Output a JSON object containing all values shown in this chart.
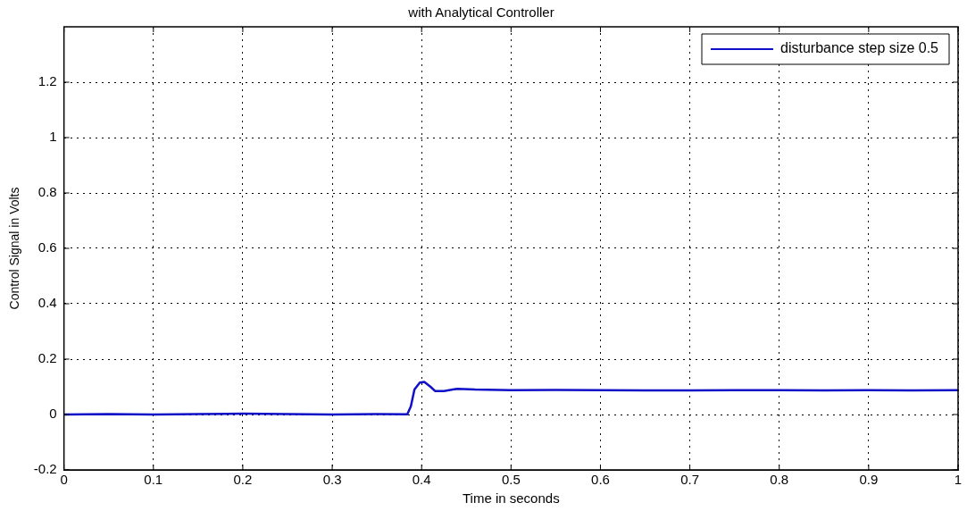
{
  "chart_data": {
    "type": "line",
    "title": "with Analytical Controller",
    "xlabel": "Time in seconds",
    "ylabel": "Control Signal in Volts",
    "xlim": [
      0,
      1
    ],
    "xticks": [
      0,
      0.1,
      0.2,
      0.3,
      0.4,
      0.5,
      0.6,
      0.7,
      0.8,
      0.9,
      1
    ],
    "ylim": [
      -0.2,
      1.4
    ],
    "yticks": [
      -0.2,
      0,
      0.2,
      0.4,
      0.6,
      0.8,
      1,
      1.2
    ],
    "grid": true,
    "legend": "top right",
    "marker": "none",
    "line_style": "solid",
    "series": [
      {
        "name": "disturbance step size 0.5",
        "color": "#1010c8",
        "x": [
          0,
          0.05,
          0.1,
          0.15,
          0.2,
          0.25,
          0.3,
          0.35,
          0.384,
          0.388,
          0.392,
          0.398,
          0.403,
          0.41,
          0.415,
          0.425,
          0.44,
          0.46,
          0.5,
          0.55,
          0.6,
          0.65,
          0.7,
          0.75,
          0.8,
          0.85,
          0.9,
          0.95,
          1
        ],
        "values": [
          0,
          0.002,
          0,
          0.002,
          0.003,
          0.002,
          0,
          0.002,
          0.001,
          0.03,
          0.09,
          0.115,
          0.118,
          0.1,
          0.085,
          0.085,
          0.093,
          0.09,
          0.088,
          0.089,
          0.088,
          0.087,
          0.087,
          0.088,
          0.088,
          0.087,
          0.088,
          0.087,
          0.088
        ]
      }
    ]
  }
}
